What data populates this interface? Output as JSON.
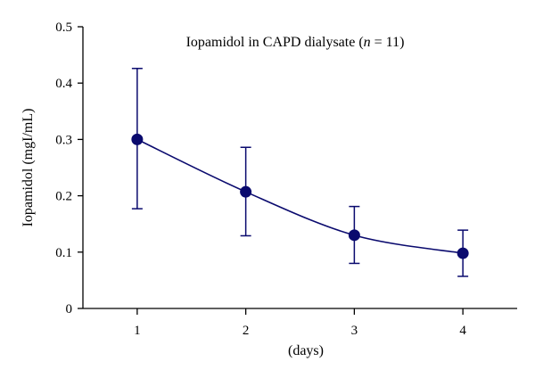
{
  "chart_data": {
    "type": "line",
    "title_prefix": "Iopamidol in CAPD dialysate (",
    "title_italic": "n",
    "title_suffix": " = 11)",
    "xlabel": "(days)",
    "ylabel": "Iopamidol (mgI/mL)",
    "x_tick_labels": [
      "1",
      "2",
      "3",
      "4"
    ],
    "y_tick_labels": [
      "0",
      "0.1",
      "0.2",
      "0.3",
      "0.4",
      "0.5"
    ],
    "y_ticks": [
      0,
      0.1,
      0.2,
      0.3,
      0.4,
      0.5
    ],
    "xlim": [
      0.5,
      4.5
    ],
    "ylim": [
      0,
      0.5
    ],
    "grid": false,
    "series": [
      {
        "x": [
          1,
          2,
          3,
          4
        ],
        "y": [
          0.3,
          0.207,
          0.13,
          0.098
        ],
        "error_upper": [
          0.426,
          0.286,
          0.181,
          0.139
        ],
        "error_lower": [
          0.177,
          0.129,
          0.08,
          0.057
        ],
        "color": "#0a0a6e"
      }
    ]
  }
}
